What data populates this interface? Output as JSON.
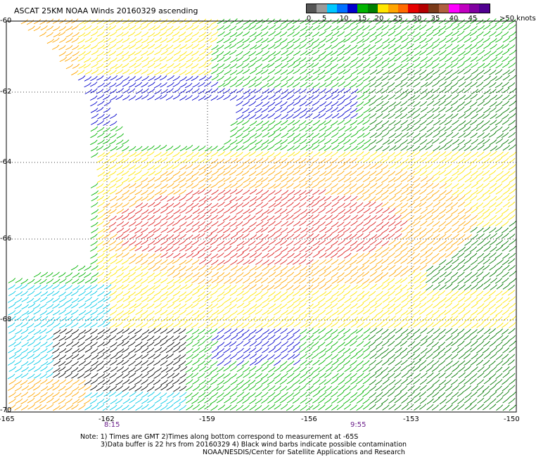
{
  "title": "ASCAT 25KM NOAA Winds 20160329 ascending",
  "legend": {
    "labels": [
      "0",
      "5",
      "10",
      "15",
      "20",
      "25",
      "30",
      "35",
      "40",
      "45",
      ">50 knots"
    ],
    "colors": [
      "#555555",
      "#9a9a9a",
      "#00c8ff",
      "#0070ff",
      "#0000cc",
      "#00b400",
      "#008000",
      "#ffe600",
      "#ffa500",
      "#ff6a00",
      "#e60000",
      "#b40000",
      "#7a3b1a",
      "#b06040",
      "#ff00ff",
      "#c000c0",
      "#8000a0",
      "#500090"
    ]
  },
  "axes": {
    "lat_labels": [
      "-60",
      "-62",
      "-64",
      "-66",
      "-68",
      "-70"
    ],
    "lon_labels": [
      "-165",
      "-162",
      "-159",
      "-156",
      "-153",
      "-150"
    ]
  },
  "times": [
    "8:15",
    "9:55"
  ],
  "notes": {
    "line1": "Note: 1) Times are GMT 2)Times along bottom correspond to measurement at -65S",
    "line2": "3)Data buffer is 22 hrs from 20160329 4) Black wind barbs indicate possible contamination",
    "line3": "NOAA/NESDIS/Center for Satellite Applications and Research"
  },
  "speed_colors": {
    "black": "#000000",
    "cyan": "#00c8e6",
    "blue": "#0000cc",
    "green": "#00b400",
    "darkgreen": "#007800",
    "yellow": "#ffe600",
    "orange": "#ffa500",
    "red": "#dd2020"
  }
}
